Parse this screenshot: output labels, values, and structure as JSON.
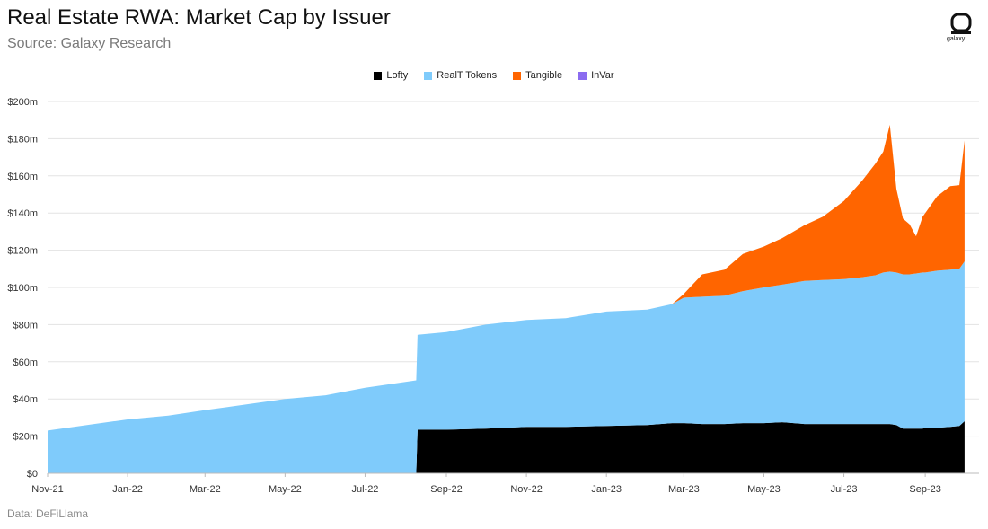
{
  "title": "Real Estate RWA: Market Cap by Issuer",
  "subtitle": "Source: Galaxy Research",
  "footer": "Data: DeFiLlama",
  "brand": {
    "name": "galaxy"
  },
  "chart_data": {
    "type": "area",
    "stacked": true,
    "legend_position": "top-center",
    "grid": true,
    "ylim": [
      0,
      200
    ],
    "y_ticks": [
      "$0",
      "$20m",
      "$40m",
      "$60m",
      "$80m",
      "$100m",
      "$120m",
      "$140m",
      "$160m",
      "$180m",
      "$200m"
    ],
    "x_ticks": [
      "Nov-21",
      "Jan-22",
      "Mar-22",
      "May-22",
      "Jul-22",
      "Sep-22",
      "Nov-22",
      "Jan-23",
      "Mar-23",
      "May-23",
      "Jul-23",
      "Sep-23"
    ],
    "x": [
      "2021-11-01",
      "2021-12-01",
      "2022-01-01",
      "2022-02-01",
      "2022-03-01",
      "2022-04-01",
      "2022-05-01",
      "2022-06-01",
      "2022-07-01",
      "2022-08-09",
      "2022-08-10",
      "2022-09-01",
      "2022-10-01",
      "2022-11-01",
      "2022-12-01",
      "2023-01-01",
      "2023-02-01",
      "2023-02-20",
      "2023-03-01",
      "2023-03-15",
      "2023-04-01",
      "2023-04-15",
      "2023-05-01",
      "2023-05-15",
      "2023-06-01",
      "2023-06-15",
      "2023-07-01",
      "2023-07-15",
      "2023-07-25",
      "2023-07-31",
      "2023-08-05",
      "2023-08-10",
      "2023-08-15",
      "2023-08-20",
      "2023-08-25",
      "2023-08-30",
      "2023-09-01",
      "2023-09-10",
      "2023-09-20",
      "2023-09-27",
      "2023-10-01"
    ],
    "series": [
      {
        "name": "Lofty",
        "color": "#000000",
        "values": [
          0,
          0,
          0,
          0,
          0,
          0,
          0,
          0,
          0,
          0,
          23.5,
          23.5,
          24,
          25,
          25,
          25.5,
          26,
          27,
          27,
          26.5,
          26.5,
          27,
          27,
          27.5,
          26.5,
          26.5,
          26.5,
          26.5,
          26.5,
          26.5,
          26.5,
          26,
          24,
          24,
          24,
          24,
          24.5,
          24.5,
          25,
          25.5,
          28
        ]
      },
      {
        "name": "RealT Tokens",
        "color": "#7fcbfb",
        "values": [
          23,
          26,
          29,
          31,
          34,
          37,
          40,
          42,
          46,
          50,
          51,
          52.5,
          56,
          57.5,
          58.5,
          61.5,
          62,
          64,
          67.5,
          68.5,
          69,
          71,
          73,
          74,
          77,
          77.5,
          78,
          79,
          80,
          81.5,
          82,
          82,
          83,
          83,
          83.5,
          84,
          83.5,
          84.5,
          84.5,
          84.5,
          86
        ]
      },
      {
        "name": "Tangible",
        "color": "#ff6500",
        "values": [
          0,
          0,
          0,
          0,
          0,
          0,
          0,
          0,
          0,
          0,
          0,
          0,
          0,
          0,
          0,
          0,
          0,
          0,
          2,
          12,
          14,
          20,
          22,
          25,
          30,
          34,
          42,
          52,
          60,
          65,
          79,
          45,
          30,
          27,
          20,
          30,
          32,
          40,
          45,
          45,
          65
        ]
      },
      {
        "name": "InVar",
        "color": "#8b6cf0",
        "values": [
          0,
          0,
          0,
          0,
          0,
          0,
          0,
          0,
          0,
          0,
          0,
          0,
          0,
          0,
          0,
          0,
          0,
          0,
          0,
          0,
          0,
          0,
          0,
          0,
          0,
          0,
          0,
          0,
          0,
          0,
          0,
          0,
          0,
          0,
          0,
          0,
          0,
          0,
          0,
          0,
          0
        ]
      }
    ]
  }
}
